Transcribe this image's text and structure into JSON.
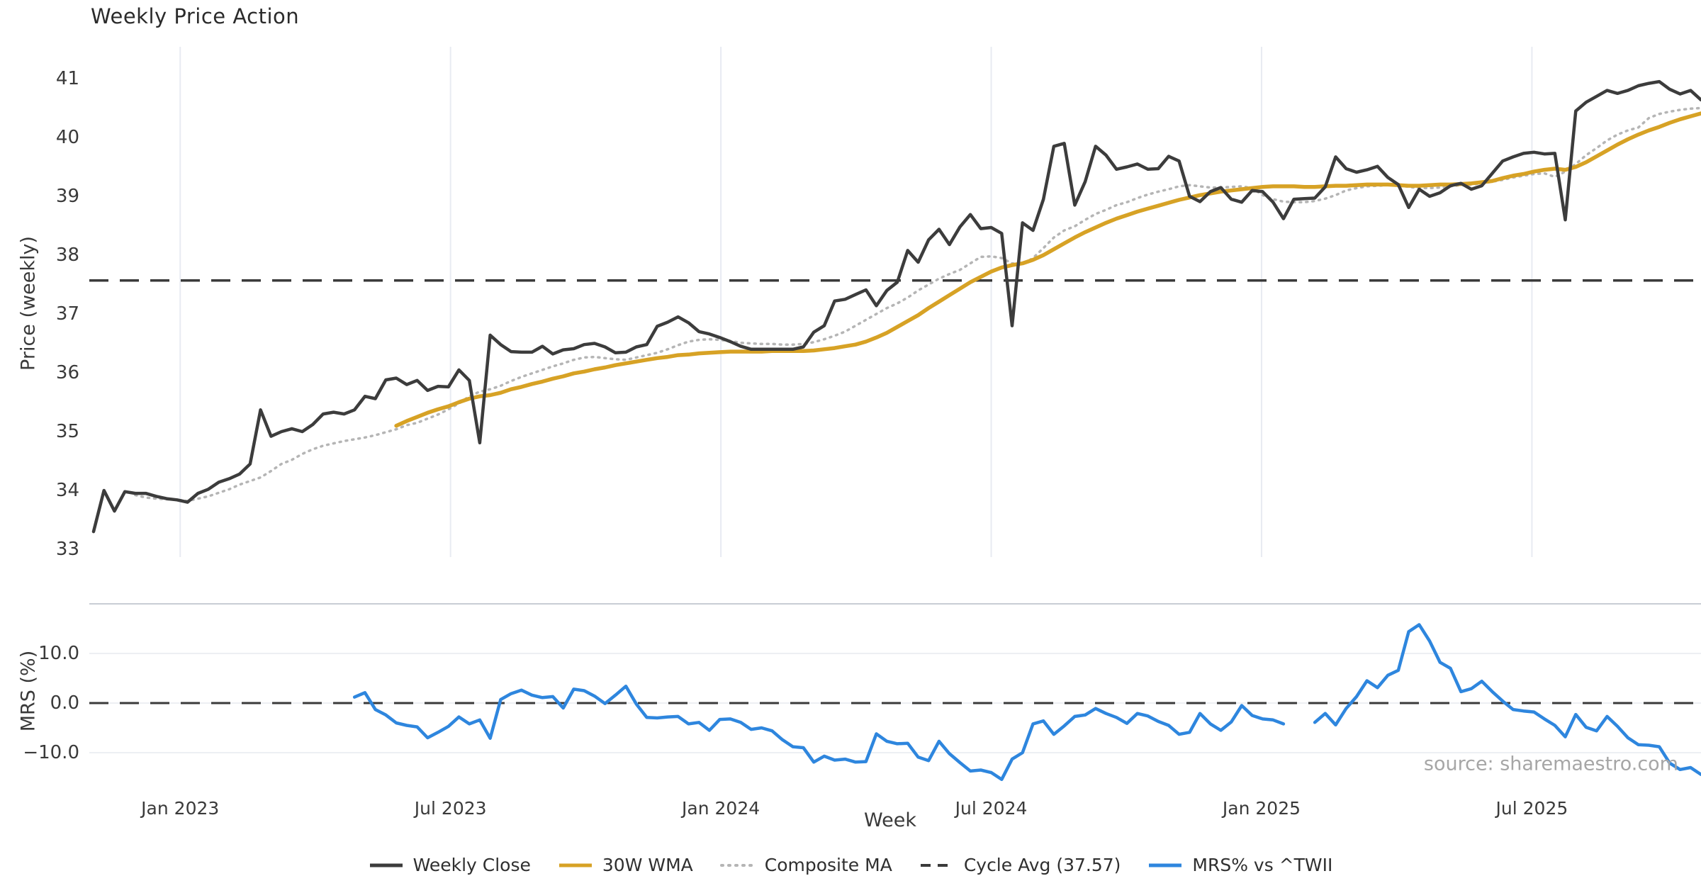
{
  "title": "Weekly Price Action",
  "watermark": "source: sharemaestro.com",
  "colors": {
    "close": "#3c3c3c",
    "wma": "#d7a225",
    "composite": "#b5b5b5",
    "cycle_dash": "#3a3a3a",
    "mrs": "#2e86de",
    "grid_vertical": "#e8ebf2",
    "grid_horizontal": "#edeff3",
    "panel_border": "#c9cdd4",
    "text": "#3a3a3a",
    "watermark": "#a6a6a6"
  },
  "x_axis": {
    "label": "Week",
    "total_weeks": 154,
    "ticks": [
      {
        "week": 8.3,
        "label": "Jan 2023"
      },
      {
        "week": 34.2,
        "label": "Jul 2023"
      },
      {
        "week": 60.1,
        "label": "Jan 2024"
      },
      {
        "week": 86.0,
        "label": "Jul 2024"
      },
      {
        "week": 111.9,
        "label": "Jan 2025"
      },
      {
        "week": 137.8,
        "label": "Jul 2025"
      }
    ]
  },
  "legend": {
    "items": [
      {
        "id": "weekly-close",
        "label": "Weekly Close",
        "swatch": "solid",
        "color": "#3c3c3c"
      },
      {
        "id": "wma30",
        "label": "30W WMA",
        "swatch": "solid",
        "color": "#d7a225"
      },
      {
        "id": "composite-ma",
        "label": "Composite MA",
        "swatch": "dotted",
        "color": "#b5b5b5"
      },
      {
        "id": "cycle-avg",
        "label": "Cycle Avg (37.57)",
        "swatch": "dashed",
        "color": "#3a3a3a"
      },
      {
        "id": "mrs",
        "label": "MRS% vs ^TWII",
        "swatch": "solid",
        "color": "#2e86de"
      }
    ]
  },
  "chart_data": [
    {
      "type": "line",
      "panel": "price",
      "ylabel": "Price (weekly)",
      "ylim": [
        32.9,
        41.5
      ],
      "yticks": [
        41,
        40,
        39,
        38,
        37,
        36,
        35,
        34,
        33
      ],
      "grid": "vertical-only",
      "cycle_avg_value": 37.57,
      "series": [
        {
          "name": "Weekly Close",
          "style": "solid",
          "values": [
            33.3,
            34.0,
            33.65,
            33.98,
            33.95,
            33.95,
            33.9,
            33.86,
            33.84,
            33.8,
            33.95,
            34.02,
            34.14,
            34.2,
            34.28,
            34.45,
            35.37,
            34.92,
            35.0,
            35.05,
            35.0,
            35.12,
            35.3,
            35.33,
            35.3,
            35.37,
            35.6,
            35.56,
            35.88,
            35.91,
            35.8,
            35.87,
            35.7,
            35.77,
            35.76,
            36.05,
            35.87,
            34.81,
            36.64,
            36.48,
            36.36,
            36.35,
            36.35,
            36.45,
            36.32,
            36.39,
            36.41,
            36.48,
            36.5,
            36.44,
            36.34,
            36.35,
            36.44,
            36.48,
            36.79,
            36.86,
            36.95,
            36.85,
            36.7,
            36.66,
            36.6,
            36.53,
            36.45,
            36.4,
            36.4,
            36.4,
            36.4,
            36.4,
            36.44,
            36.69,
            36.8,
            37.22,
            37.25,
            37.33,
            37.41,
            37.14,
            37.4,
            37.54,
            38.08,
            37.88,
            38.26,
            38.44,
            38.18,
            38.48,
            38.69,
            38.45,
            38.47,
            38.37,
            36.8,
            38.55,
            38.42,
            38.95,
            39.85,
            39.9,
            38.85,
            39.25,
            39.85,
            39.7,
            39.46,
            39.5,
            39.55,
            39.46,
            39.47,
            39.68,
            39.6,
            39.0,
            38.91,
            39.08,
            39.15,
            38.95,
            38.9,
            39.1,
            39.08,
            38.9,
            38.62,
            38.95,
            38.96,
            38.97,
            39.16,
            39.67,
            39.47,
            39.41,
            39.45,
            39.51,
            39.32,
            39.2,
            38.81,
            39.12,
            39.0,
            39.06,
            39.18,
            39.22,
            39.12,
            39.18,
            39.39,
            39.6,
            39.67,
            39.73,
            39.75,
            39.72,
            39.73,
            38.6,
            40.45,
            40.6,
            40.7,
            40.8,
            40.75,
            40.8,
            40.88,
            40.92,
            40.95,
            40.82,
            40.74,
            40.8,
            40.64
          ]
        },
        {
          "name": "30W WMA",
          "style": "solid",
          "values": [
            null,
            null,
            null,
            null,
            null,
            null,
            null,
            null,
            null,
            null,
            null,
            null,
            null,
            null,
            null,
            null,
            null,
            null,
            null,
            null,
            null,
            null,
            null,
            null,
            null,
            null,
            null,
            null,
            null,
            35.1,
            35.18,
            35.25,
            35.32,
            35.38,
            35.43,
            35.5,
            35.56,
            35.6,
            35.62,
            35.66,
            35.72,
            35.76,
            35.81,
            35.85,
            35.9,
            35.94,
            35.99,
            36.02,
            36.06,
            36.09,
            36.13,
            36.16,
            36.19,
            36.22,
            36.25,
            36.27,
            36.3,
            36.31,
            36.33,
            36.34,
            36.35,
            36.36,
            36.36,
            36.36,
            36.36,
            36.37,
            36.37,
            36.37,
            36.37,
            36.38,
            36.4,
            36.42,
            36.45,
            36.48,
            36.53,
            36.6,
            36.68,
            36.78,
            36.88,
            36.98,
            37.1,
            37.21,
            37.32,
            37.43,
            37.54,
            37.63,
            37.72,
            37.79,
            37.83,
            37.86,
            37.92,
            38.0,
            38.1,
            38.2,
            38.3,
            38.39,
            38.47,
            38.55,
            38.62,
            38.68,
            38.74,
            38.79,
            38.84,
            38.89,
            38.94,
            38.98,
            39.02,
            39.05,
            39.08,
            39.1,
            39.12,
            39.14,
            39.16,
            39.17,
            39.17,
            39.17,
            39.16,
            39.16,
            39.17,
            39.18,
            39.18,
            39.19,
            39.2,
            39.2,
            39.2,
            39.19,
            39.18,
            39.18,
            39.19,
            39.2,
            39.2,
            39.21,
            39.22,
            39.24,
            39.26,
            39.31,
            39.35,
            39.38,
            39.42,
            39.45,
            39.47,
            39.45,
            39.5,
            39.58,
            39.68,
            39.78,
            39.88,
            39.97,
            40.05,
            40.12,
            40.18,
            40.25,
            40.31,
            40.36,
            40.41
          ]
        },
        {
          "name": "Composite MA",
          "style": "dotted",
          "values": [
            null,
            null,
            null,
            null,
            33.92,
            33.88,
            33.86,
            33.85,
            33.84,
            33.82,
            33.86,
            33.9,
            33.96,
            34.02,
            34.1,
            34.16,
            34.22,
            34.33,
            34.45,
            34.52,
            34.62,
            34.7,
            34.76,
            34.8,
            34.84,
            34.87,
            34.9,
            34.94,
            34.99,
            35.04,
            35.11,
            35.15,
            35.22,
            35.29,
            35.38,
            35.48,
            35.6,
            35.68,
            35.72,
            35.78,
            35.86,
            35.93,
            35.99,
            36.05,
            36.11,
            36.16,
            36.22,
            36.26,
            36.27,
            36.25,
            36.23,
            36.22,
            36.26,
            36.3,
            36.34,
            36.4,
            36.47,
            36.53,
            36.56,
            36.57,
            36.56,
            36.54,
            36.51,
            36.5,
            36.49,
            36.49,
            36.48,
            36.48,
            36.49,
            36.52,
            36.57,
            36.63,
            36.7,
            36.8,
            36.9,
            37.0,
            37.1,
            37.18,
            37.28,
            37.4,
            37.5,
            37.6,
            37.68,
            37.75,
            37.86,
            37.97,
            37.98,
            37.95,
            37.86,
            37.84,
            37.95,
            38.12,
            38.3,
            38.42,
            38.49,
            38.6,
            38.7,
            38.77,
            38.85,
            38.9,
            38.97,
            39.03,
            39.08,
            39.12,
            39.17,
            39.19,
            39.17,
            39.15,
            39.15,
            39.16,
            39.17,
            39.14,
            39.02,
            38.95,
            38.91,
            38.9,
            38.9,
            38.92,
            38.96,
            39.02,
            39.1,
            39.14,
            39.17,
            39.18,
            39.19,
            39.19,
            39.16,
            39.14,
            39.14,
            39.15,
            39.17,
            39.19,
            39.2,
            39.22,
            39.25,
            39.28,
            39.32,
            39.35,
            39.38,
            39.39,
            39.33,
            39.42,
            39.55,
            39.7,
            39.82,
            39.95,
            40.05,
            40.12,
            40.17,
            40.33,
            40.4,
            40.44,
            40.47,
            40.49,
            40.5
          ]
        },
        {
          "name": "Cycle Avg",
          "style": "dashed-horizontal",
          "value": 37.57
        }
      ]
    },
    {
      "type": "line",
      "panel": "mrs",
      "ylabel": "MRS (%)",
      "ylim": [
        -16.5,
        20.0
      ],
      "yticks": [
        {
          "v": 10,
          "label": "10.0"
        },
        {
          "v": 0,
          "label": "0.0"
        },
        {
          "v": -10,
          "label": "−10.0"
        }
      ],
      "zero_line": "dashed",
      "grid": "horizontal-only",
      "series": [
        {
          "name": "MRS% vs ^TWII",
          "style": "solid",
          "values": [
            null,
            null,
            null,
            null,
            null,
            null,
            null,
            null,
            null,
            null,
            null,
            null,
            null,
            null,
            null,
            null,
            null,
            null,
            null,
            null,
            null,
            null,
            null,
            null,
            null,
            1.2,
            2.1,
            -1.3,
            -2.4,
            -4.0,
            -4.5,
            -4.8,
            -7.0,
            -5.9,
            -4.7,
            -2.8,
            -4.2,
            -3.4,
            -7.1,
            0.7,
            1.9,
            2.6,
            1.6,
            1.1,
            1.3,
            -1.0,
            2.8,
            2.5,
            1.4,
            -0.1,
            1.6,
            3.4,
            -0.2,
            -2.9,
            -3.0,
            -2.8,
            -2.7,
            -4.2,
            -3.9,
            -5.5,
            -3.3,
            -3.2,
            -3.9,
            -5.3,
            -5.0,
            -5.6,
            -7.4,
            -8.8,
            -9.0,
            -11.9,
            -10.7,
            -11.5,
            -11.3,
            -11.9,
            -11.8,
            -6.2,
            -7.7,
            -8.2,
            -8.1,
            -10.9,
            -11.6,
            -7.7,
            -10.2,
            -12.0,
            -13.7,
            -13.5,
            -14.0,
            -15.4,
            -11.3,
            -10.0,
            -4.2,
            -3.6,
            -6.3,
            -4.6,
            -2.7,
            -2.4,
            -1.1,
            -2.1,
            -2.9,
            -4.1,
            -2.1,
            -2.6,
            -3.7,
            -4.5,
            -6.3,
            -5.9,
            -2.1,
            -4.2,
            -5.5,
            -3.8,
            -0.5,
            -2.5,
            -3.2,
            -3.4,
            -4.2,
            null,
            null,
            -3.9,
            -2.1,
            -4.4,
            -1.1,
            1.3,
            4.5,
            3.1,
            5.6,
            6.6,
            14.4,
            15.8,
            12.5,
            8.2,
            7.0,
            2.3,
            2.9,
            4.4,
            2.3,
            0.4,
            -1.3,
            -1.6,
            -1.8,
            -3.2,
            -4.5,
            -6.8,
            -2.3,
            -4.9,
            -5.6,
            -2.7,
            -4.7,
            -7.0,
            -8.4,
            -8.5,
            -8.8,
            -12.1,
            -13.4,
            -13.0,
            -14.4
          ]
        }
      ]
    }
  ]
}
